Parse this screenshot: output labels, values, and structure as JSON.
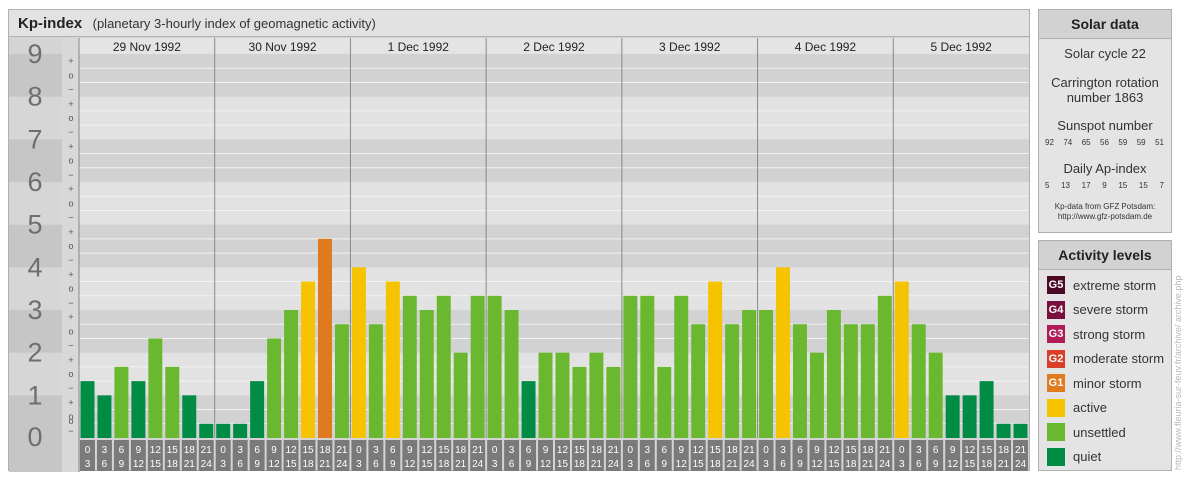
{
  "chart_data": {
    "type": "bar",
    "title": "Kp-index",
    "subtitle": "(planetary 3-hourly index of geomagnetic activity)",
    "ylim": [
      0,
      9
    ],
    "y_ticks": [
      "0",
      "1",
      "2",
      "3",
      "4",
      "5",
      "6",
      "7",
      "8",
      "9"
    ],
    "minor_ticks": [
      "+",
      "o",
      "−"
    ],
    "days": [
      "29 Nov 1992",
      "30 Nov 1992",
      "1 Dec 1992",
      "2 Dec 1992",
      "3 Dec 1992",
      "4 Dec 1992",
      "5 Dec 1992"
    ],
    "interval_start": [
      "0",
      "3",
      "6",
      "9",
      "12",
      "15",
      "18",
      "21"
    ],
    "interval_end": [
      "3",
      "6",
      "9",
      "12",
      "15",
      "18",
      "21",
      "24"
    ],
    "values": [
      1.333,
      1.0,
      1.667,
      1.333,
      2.333,
      1.667,
      1.0,
      0.333,
      0.333,
      0.333,
      1.333,
      2.333,
      3.0,
      3.667,
      4.667,
      2.667,
      4.0,
      2.667,
      3.667,
      3.333,
      3.0,
      3.333,
      2.0,
      3.333,
      3.333,
      3.0,
      1.333,
      2.0,
      2.0,
      1.667,
      2.0,
      1.667,
      3.333,
      3.333,
      1.667,
      3.333,
      2.667,
      3.667,
      2.667,
      3.0,
      3.0,
      4.0,
      2.667,
      2.0,
      3.0,
      2.667,
      2.667,
      3.333,
      3.667,
      2.667,
      2.0,
      1.0,
      1.0,
      1.333,
      0.333,
      0.333
    ],
    "level_colors": {
      "quiet": "#008c45",
      "unsettled": "#6ab82f",
      "active": "#f5c300",
      "minor_storm": "#e07a1e"
    }
  },
  "solar": {
    "title": "Solar data",
    "cycle": "Solar cycle 22",
    "carrington_1": "Carrington rotation",
    "carrington_2": "number 1863",
    "sunspot_label": "Sunspot number",
    "sunspot_values": [
      "92",
      "74",
      "65",
      "56",
      "59",
      "59",
      "51"
    ],
    "ap_label": "Daily Ap-index",
    "ap_values": [
      "5",
      "13",
      "17",
      "9",
      "15",
      "15",
      "7"
    ],
    "credit_1": "Kp-data from GFZ Potsdam:",
    "credit_2": "http://www.gfz-potsdam.de"
  },
  "activity": {
    "title": "Activity levels",
    "levels": [
      {
        "code": "G5",
        "label": "extreme storm",
        "color": "#4a0a25"
      },
      {
        "code": "G4",
        "label": "severe storm",
        "color": "#7a0e3e"
      },
      {
        "code": "G3",
        "label": "strong storm",
        "color": "#b01c58"
      },
      {
        "code": "G2",
        "label": "moderate storm",
        "color": "#d8402a"
      },
      {
        "code": "G1",
        "label": "minor storm",
        "color": "#e07a1e"
      },
      {
        "code": "",
        "label": "active",
        "color": "#f5c300"
      },
      {
        "code": "",
        "label": "unsettled",
        "color": "#6ab82f"
      },
      {
        "code": "",
        "label": "quiet",
        "color": "#008c45"
      }
    ]
  },
  "side_credit": "http://www.fleuria-sur-feuv.fr/archive/   archive.php"
}
